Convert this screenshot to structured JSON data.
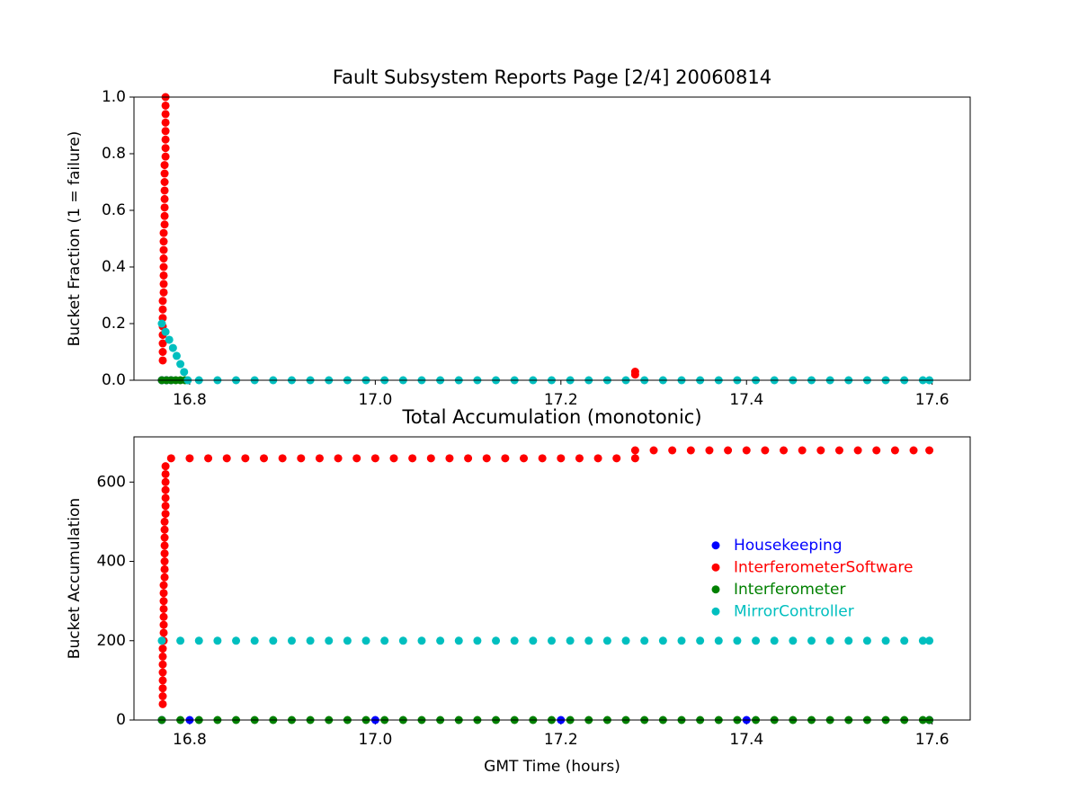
{
  "chart_data": [
    {
      "type": "scatter",
      "title": "Fault Subsystem Reports Page [2/4] 20060814",
      "y_label": "Bucket Fraction (1 = failure)",
      "xlim": [
        16.74,
        17.641
      ],
      "xticks": [
        16.8,
        {
          "value": 17.0,
          "label": "17.0"
        },
        17.2,
        17.4,
        17.6
      ],
      "ylim": [
        0,
        1
      ],
      "yticks": [
        {
          "value": 0,
          "label": "0.0"
        },
        0.2,
        0.4,
        0.6,
        0.8,
        {
          "value": 1,
          "label": "1.0"
        }
      ],
      "series": [
        {
          "name": "Housekeeping",
          "color": "#0000ff",
          "x": [
            16.77,
            16.775,
            16.78
          ],
          "values": [
            0,
            0,
            0
          ]
        },
        {
          "name": "InterferometerSoftware",
          "color": "#ff0000",
          "x": [
            16.771,
            16.771,
            16.771,
            16.771,
            16.771,
            16.771,
            16.771,
            16.771,
            16.772,
            16.772,
            16.772,
            16.772,
            16.772,
            16.772,
            16.772,
            16.772,
            16.773,
            16.773,
            16.773,
            16.773,
            16.773,
            16.773,
            16.773,
            16.773,
            16.774,
            16.774,
            16.774,
            16.774,
            16.774,
            16.774,
            16.774,
            16.774,
            17.28,
            17.28
          ],
          "values": [
            0.07,
            0.1,
            0.13,
            0.16,
            0.19,
            0.22,
            0.25,
            0.28,
            0.31,
            0.34,
            0.37,
            0.4,
            0.43,
            0.46,
            0.49,
            0.52,
            0.55,
            0.58,
            0.61,
            0.64,
            0.67,
            0.7,
            0.73,
            0.76,
            0.79,
            0.82,
            0.85,
            0.88,
            0.91,
            0.94,
            0.97,
            1.0,
            0.03,
            0.02
          ]
        },
        {
          "name": "Interferometer",
          "color": "#008000",
          "x": [
            16.77,
            16.775,
            16.78,
            16.785,
            16.79,
            16.795
          ],
          "values": [
            0,
            0,
            0,
            0,
            0,
            0
          ]
        },
        {
          "name": "MirrorController",
          "color": "#00bfbf",
          "x": [
            16.77,
            16.774,
            16.778,
            16.782,
            16.786,
            16.79,
            16.794,
            16.798,
            16.81,
            16.83,
            16.85,
            16.87,
            16.89,
            16.91,
            16.93,
            16.95,
            16.97,
            16.99,
            17.01,
            17.03,
            17.05,
            17.07,
            17.09,
            17.11,
            17.13,
            17.15,
            17.17,
            17.19,
            17.21,
            17.23,
            17.25,
            17.27,
            17.29,
            17.31,
            17.33,
            17.35,
            17.37,
            17.39,
            17.41,
            17.43,
            17.45,
            17.47,
            17.49,
            17.51,
            17.53,
            17.55,
            17.57,
            17.59,
            17.597
          ],
          "values": [
            0.2,
            0.171,
            0.143,
            0.114,
            0.086,
            0.057,
            0.029,
            0,
            0,
            0,
            0,
            0,
            0,
            0,
            0,
            0,
            0,
            0,
            0,
            0,
            0,
            0,
            0,
            0,
            0,
            0,
            0,
            0,
            0,
            0,
            0,
            0,
            0,
            0,
            0,
            0,
            0,
            0,
            0,
            0,
            0,
            0,
            0,
            0,
            0,
            0,
            0,
            0,
            0
          ]
        }
      ]
    },
    {
      "type": "scatter",
      "title": "Total Accumulation (monotonic)",
      "x_label": "GMT Time (hours)",
      "y_label": "Bucket Accumulation",
      "xlim": [
        16.74,
        17.641
      ],
      "xticks": [
        16.8,
        {
          "value": 17.0,
          "label": "17.0"
        },
        17.2,
        17.4,
        17.6
      ],
      "ylim": [
        0,
        714
      ],
      "yticks": [
        0,
        200,
        400,
        600
      ],
      "legend": "center right",
      "series": [
        {
          "name": "Housekeeping",
          "color": "#0000ff",
          "x": [
            16.77,
            16.8,
            17.0,
            17.2,
            17.4,
            17.597
          ],
          "values": [
            0,
            0,
            0,
            0,
            0,
            0
          ]
        },
        {
          "name": "InterferometerSoftware",
          "color": "#ff0000",
          "x": [
            16.771,
            16.771,
            16.771,
            16.771,
            16.771,
            16.771,
            16.771,
            16.771,
            16.772,
            16.772,
            16.772,
            16.772,
            16.772,
            16.772,
            16.772,
            16.772,
            16.773,
            16.773,
            16.773,
            16.773,
            16.773,
            16.773,
            16.773,
            16.773,
            16.774,
            16.774,
            16.774,
            16.774,
            16.774,
            16.774,
            16.774,
            16.78,
            16.8,
            16.82,
            16.84,
            16.86,
            16.88,
            16.9,
            16.92,
            16.94,
            16.96,
            16.98,
            17.0,
            17.02,
            17.04,
            17.06,
            17.08,
            17.1,
            17.12,
            17.14,
            17.16,
            17.18,
            17.2,
            17.22,
            17.24,
            17.26,
            17.28,
            17.28,
            17.3,
            17.32,
            17.34,
            17.36,
            17.38,
            17.4,
            17.42,
            17.44,
            17.46,
            17.48,
            17.5,
            17.52,
            17.54,
            17.56,
            17.58,
            17.597
          ],
          "values": [
            40,
            60,
            80,
            100,
            120,
            140,
            160,
            180,
            200,
            220,
            240,
            260,
            280,
            300,
            320,
            340,
            360,
            380,
            400,
            420,
            440,
            460,
            480,
            500,
            520,
            540,
            560,
            580,
            600,
            620,
            640,
            660,
            660,
            660,
            660,
            660,
            660,
            660,
            660,
            660,
            660,
            660,
            660,
            660,
            660,
            660,
            660,
            660,
            660,
            660,
            660,
            660,
            660,
            660,
            660,
            660,
            660,
            680,
            680,
            680,
            680,
            680,
            680,
            680,
            680,
            680,
            680,
            680,
            680,
            680,
            680,
            680,
            680,
            680
          ]
        },
        {
          "name": "Interferometer",
          "color": "#008000",
          "x": [
            16.77,
            16.79,
            16.81,
            16.83,
            16.85,
            16.87,
            16.89,
            16.91,
            16.93,
            16.95,
            16.97,
            16.99,
            17.01,
            17.03,
            17.05,
            17.07,
            17.09,
            17.11,
            17.13,
            17.15,
            17.17,
            17.19,
            17.21,
            17.23,
            17.25,
            17.27,
            17.29,
            17.31,
            17.33,
            17.35,
            17.37,
            17.39,
            17.41,
            17.43,
            17.45,
            17.47,
            17.49,
            17.51,
            17.53,
            17.55,
            17.57,
            17.59,
            17.597
          ],
          "values": [
            0,
            0,
            0,
            0,
            0,
            0,
            0,
            0,
            0,
            0,
            0,
            0,
            0,
            0,
            0,
            0,
            0,
            0,
            0,
            0,
            0,
            0,
            0,
            0,
            0,
            0,
            0,
            0,
            0,
            0,
            0,
            0,
            0,
            0,
            0,
            0,
            0,
            0,
            0,
            0,
            0,
            0,
            0
          ]
        },
        {
          "name": "MirrorController",
          "color": "#00bfbf",
          "x": [
            16.77,
            16.79,
            16.81,
            16.83,
            16.85,
            16.87,
            16.89,
            16.91,
            16.93,
            16.95,
            16.97,
            16.99,
            17.01,
            17.03,
            17.05,
            17.07,
            17.09,
            17.11,
            17.13,
            17.15,
            17.17,
            17.19,
            17.21,
            17.23,
            17.25,
            17.27,
            17.29,
            17.31,
            17.33,
            17.35,
            17.37,
            17.39,
            17.41,
            17.43,
            17.45,
            17.47,
            17.49,
            17.51,
            17.53,
            17.55,
            17.57,
            17.59,
            17.597
          ],
          "values": [
            200,
            200,
            200,
            200,
            200,
            200,
            200,
            200,
            200,
            200,
            200,
            200,
            200,
            200,
            200,
            200,
            200,
            200,
            200,
            200,
            200,
            200,
            200,
            200,
            200,
            200,
            200,
            200,
            200,
            200,
            200,
            200,
            200,
            200,
            200,
            200,
            200,
            200,
            200,
            200,
            200,
            200,
            200
          ]
        }
      ]
    }
  ]
}
